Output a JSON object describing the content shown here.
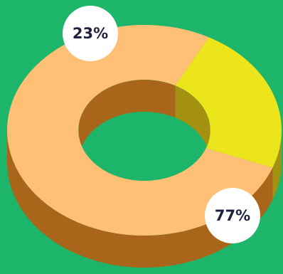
{
  "colors": {
    "background": "#1db56a",
    "label_bubble": "#ffffff",
    "label_text": "#1e2140"
  },
  "chart_data": {
    "type": "pie",
    "style": "3d-donut",
    "series": [
      {
        "values": [
          23,
          77
        ],
        "labels": [
          "23%",
          "77%"
        ],
        "colors": [
          "#ece51c",
          "#ffbf74"
        ],
        "side_colors": [
          "#a49112",
          "#a9651a"
        ]
      }
    ]
  }
}
